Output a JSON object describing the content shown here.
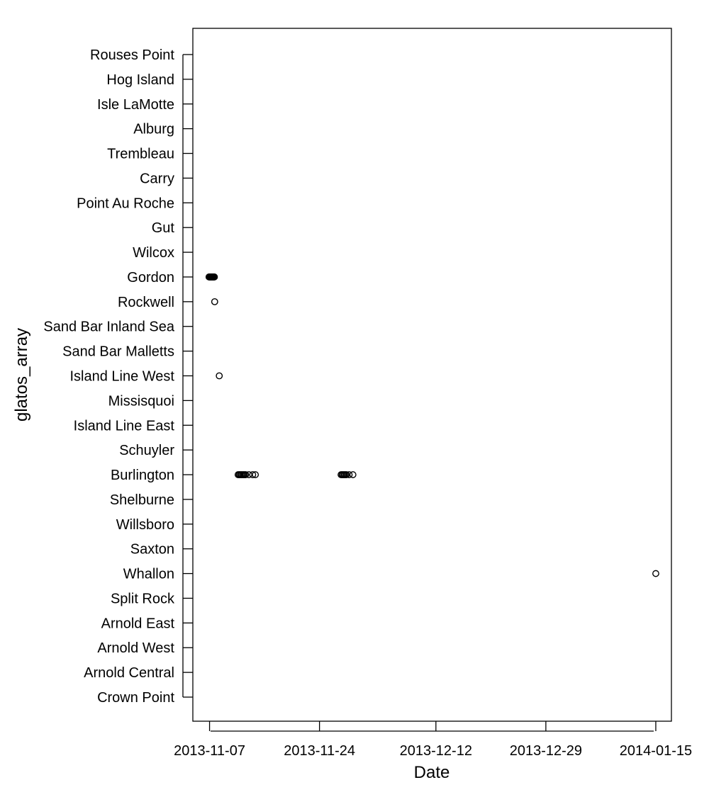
{
  "chart_data": {
    "type": "scatter",
    "title": "",
    "xlabel": "Date",
    "ylabel": "glatos_array",
    "x_ticks": [
      "2013-11-07",
      "2013-11-24",
      "2013-12-12",
      "2013-12-29",
      "2014-01-15"
    ],
    "xlim": [
      "2013-11-04T10:00",
      "2014-01-17T10:00"
    ],
    "grid": false,
    "categories": [
      "Crown Point",
      "Arnold Central",
      "Arnold West",
      "Arnold East",
      "Split Rock",
      "Whallon",
      "Saxton",
      "Willsboro",
      "Shelburne",
      "Burlington",
      "Schuyler",
      "Island Line East",
      "Missisquoi",
      "Island Line West",
      "Sand Bar Malletts",
      "Sand Bar Inland Sea",
      "Rockwell",
      "Gordon",
      "Wilcox",
      "Gut",
      "Point Au Roche",
      "Carry",
      "Trembleau",
      "Alburg",
      "Isle LaMotte",
      "Hog Island",
      "Rouses Point"
    ],
    "points": [
      {
        "x": "2013-11-06T22:00",
        "y": "Gordon"
      },
      {
        "x": "2013-11-07T00:00",
        "y": "Gordon"
      },
      {
        "x": "2013-11-07T02:00",
        "y": "Gordon"
      },
      {
        "x": "2013-11-07T04:00",
        "y": "Gordon"
      },
      {
        "x": "2013-11-07T06:00",
        "y": "Gordon"
      },
      {
        "x": "2013-11-07T08:00",
        "y": "Gordon"
      },
      {
        "x": "2013-11-07T10:00",
        "y": "Gordon"
      },
      {
        "x": "2013-11-07T12:00",
        "y": "Gordon"
      },
      {
        "x": "2013-11-07T14:00",
        "y": "Gordon"
      },
      {
        "x": "2013-11-07T16:00",
        "y": "Gordon"
      },
      {
        "x": "2013-11-07T18:00",
        "y": "Gordon"
      },
      {
        "x": "2013-11-07T19:00",
        "y": "Rockwell"
      },
      {
        "x": "2013-11-08T12:00",
        "y": "Island Line West"
      },
      {
        "x": "2013-11-11T10:00",
        "y": "Burlington"
      },
      {
        "x": "2013-11-11T14:00",
        "y": "Burlington"
      },
      {
        "x": "2013-11-11T18:00",
        "y": "Burlington"
      },
      {
        "x": "2013-11-11T22:00",
        "y": "Burlington"
      },
      {
        "x": "2013-11-12T02:00",
        "y": "Burlington"
      },
      {
        "x": "2013-11-12T06:00",
        "y": "Burlington"
      },
      {
        "x": "2013-11-12T10:00",
        "y": "Burlington"
      },
      {
        "x": "2013-11-12T14:00",
        "y": "Burlington"
      },
      {
        "x": "2013-11-13T02:00",
        "y": "Burlington"
      },
      {
        "x": "2013-11-13T16:00",
        "y": "Burlington"
      },
      {
        "x": "2013-11-14T02:00",
        "y": "Burlington"
      },
      {
        "x": "2013-11-27T08:00",
        "y": "Burlington"
      },
      {
        "x": "2013-11-27T12:00",
        "y": "Burlington"
      },
      {
        "x": "2013-11-27T16:00",
        "y": "Burlington"
      },
      {
        "x": "2013-11-27T20:00",
        "y": "Burlington"
      },
      {
        "x": "2013-11-28T00:00",
        "y": "Burlington"
      },
      {
        "x": "2013-11-28T04:00",
        "y": "Burlington"
      },
      {
        "x": "2013-11-28T14:00",
        "y": "Burlington"
      },
      {
        "x": "2013-11-29T04:00",
        "y": "Burlington"
      },
      {
        "x": "2014-01-15T00:00",
        "y": "Whallon"
      }
    ]
  }
}
